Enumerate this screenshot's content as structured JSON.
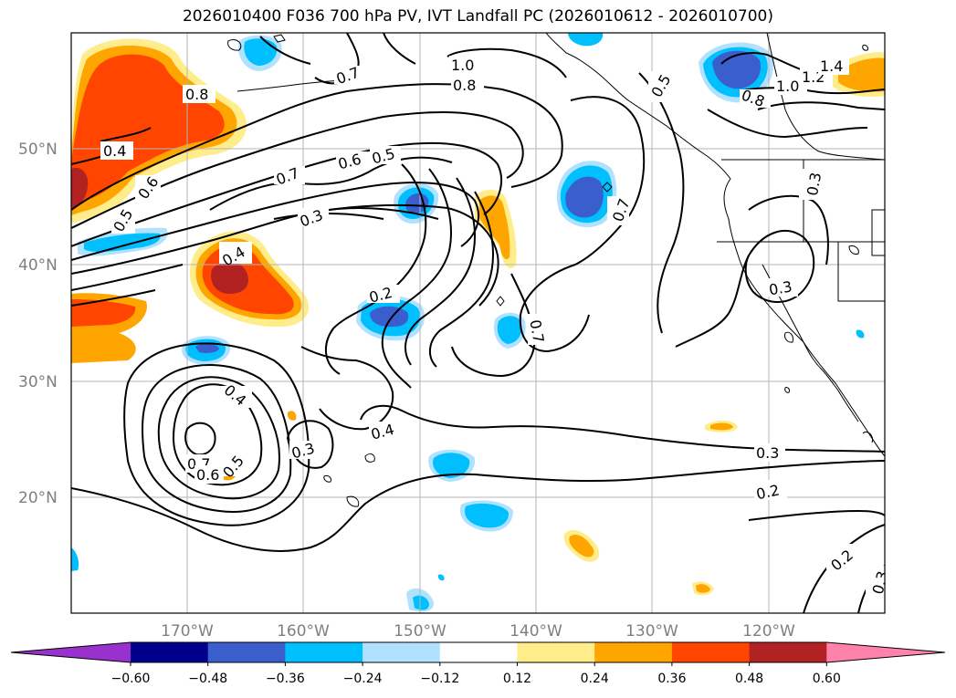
{
  "title": "2026010400 F036 700 hPa PV, IVT Landfall PC (2026010612 - 2026010700)",
  "lat_labels": [
    "50°N",
    "40°N",
    "30°N",
    "20°N"
  ],
  "lon_labels": [
    "170°W",
    "160°W",
    "150°W",
    "140°W",
    "130°W",
    "120°W"
  ],
  "colorbar": {
    "colors": [
      "#9932cc",
      "#00008b",
      "#3a5fcd",
      "#00bfff",
      "#b0e2ff",
      "#ffffff",
      "#ffec8b",
      "#ffa500",
      "#ff4500",
      "#b22222",
      "#ff82ab"
    ],
    "tick_labels": [
      "−0.60",
      "−0.48",
      "−0.36",
      "−0.24",
      "−0.12",
      "0.12",
      "0.24",
      "0.36",
      "0.48",
      "0.60"
    ]
  },
  "contour_labels": [
    "0.8",
    "0.4",
    "0.6",
    "0.5",
    "0.7",
    "0.6",
    "0.5",
    "0.3",
    "1.0",
    "0.8",
    "0.7",
    "0.5",
    "0.8",
    "1.0",
    "1.2",
    "1.4",
    "0.7",
    "0.4",
    "0.2",
    "0.3",
    "0.7",
    "0.4",
    "0.7",
    "0.6",
    "0.5",
    "0.3",
    "0.4",
    "0.3",
    "0.3",
    "0.2",
    "0.2",
    "0.3"
  ]
}
